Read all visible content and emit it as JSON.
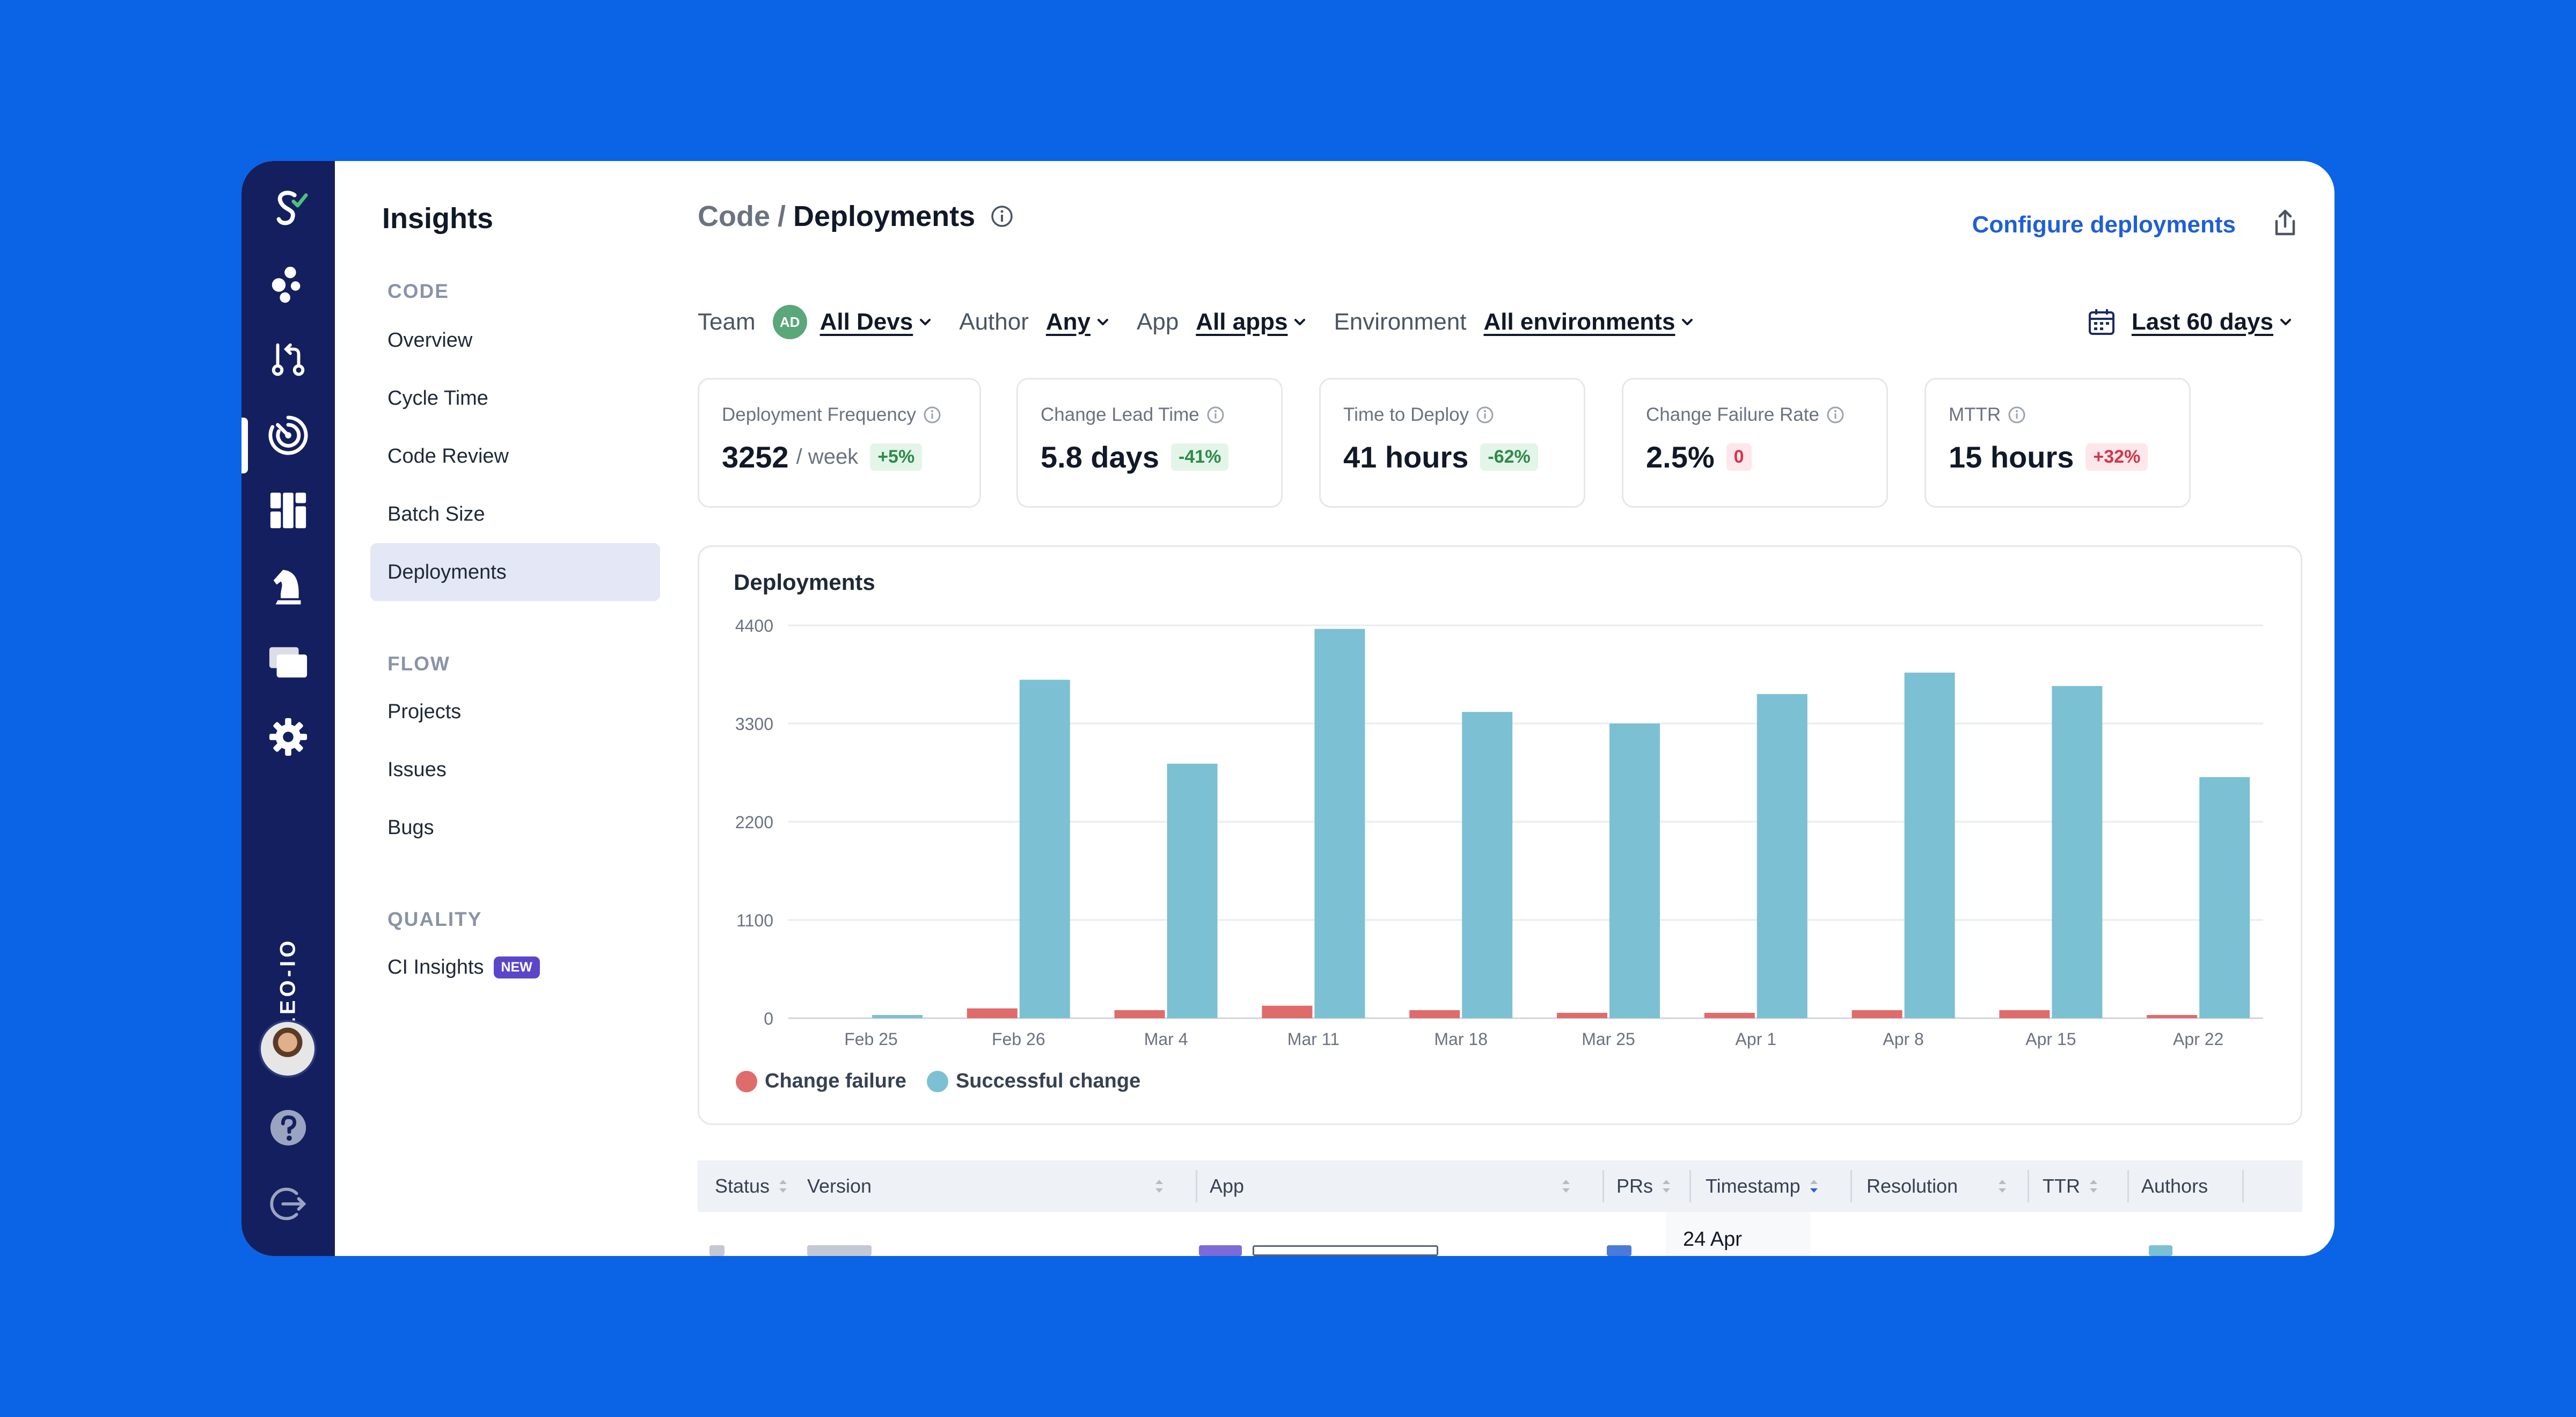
{
  "rail": {
    "workspace": "PLEO-IO",
    "icons": [
      "logo-icon",
      "stats-icon",
      "pull-request-icon",
      "insights-icon",
      "dashboard-icon",
      "chess-knight-icon",
      "cards-icon",
      "settings-icon",
      "help-icon",
      "logout-icon"
    ]
  },
  "subnav": {
    "title": "Insights",
    "sections": [
      {
        "label": "CODE",
        "items": [
          "Overview",
          "Cycle Time",
          "Code Review",
          "Batch Size",
          "Deployments"
        ]
      },
      {
        "label": "FLOW",
        "items": [
          "Projects",
          "Issues",
          "Bugs"
        ]
      },
      {
        "label": "QUALITY",
        "items": [
          "CI Insights"
        ]
      }
    ],
    "active_item": "Deployments",
    "new_badge": "NEW"
  },
  "header": {
    "parent": "Code",
    "separator": "/",
    "current": "Deployments",
    "configure": "Configure deployments"
  },
  "filters": {
    "team_label": "Team",
    "team_avatar": "AD",
    "team_value": "All Devs",
    "author_label": "Author",
    "author_value": "Any",
    "app_label": "App",
    "app_value": "All apps",
    "env_label": "Environment",
    "env_value": "All environments",
    "date_range": "Last 60 days"
  },
  "kpis": [
    {
      "label": "Deployment Frequency",
      "value": "3252",
      "unit": "/ week",
      "change": "+5%",
      "tone": "good"
    },
    {
      "label": "Change Lead Time",
      "value": "5.8 days",
      "unit": "",
      "change": "-41%",
      "tone": "good"
    },
    {
      "label": "Time to Deploy",
      "value": "41 hours",
      "unit": "",
      "change": "-62%",
      "tone": "good"
    },
    {
      "label": "Change Failure Rate",
      "value": "2.5%",
      "unit": "",
      "change": "0",
      "tone": "bad"
    },
    {
      "label": "MTTR",
      "value": "15 hours",
      "unit": "",
      "change": "+32%",
      "tone": "bad"
    }
  ],
  "chart_title": "Deployments",
  "chart_data": {
    "type": "bar",
    "title": "Deployments",
    "categories": [
      "Feb 25",
      "Feb 26",
      "Mar 4",
      "Mar 11",
      "Mar 18",
      "Mar 25",
      "Apr 1",
      "Apr 8",
      "Apr 15",
      "Apr 22"
    ],
    "series": [
      {
        "name": "Change failure",
        "color": "#e06b6b",
        "values": [
          0,
          110,
          90,
          140,
          90,
          60,
          60,
          90,
          90,
          30
        ]
      },
      {
        "name": "Successful change",
        "color": "#7cc0d3",
        "values": [
          30,
          3790,
          2850,
          4360,
          3430,
          3300,
          3630,
          3870,
          3720,
          2700
        ]
      }
    ],
    "yticks": [
      0,
      1100,
      2200,
      3300,
      4400
    ],
    "ylim": [
      0,
      4400
    ],
    "grid": true,
    "legend": "bottom-left"
  },
  "table": {
    "columns": [
      "Status",
      "Version",
      "App",
      "PRs",
      "Timestamp",
      "Resolution",
      "TTR",
      "Authors"
    ],
    "first_row_timestamp": "24 Apr"
  }
}
